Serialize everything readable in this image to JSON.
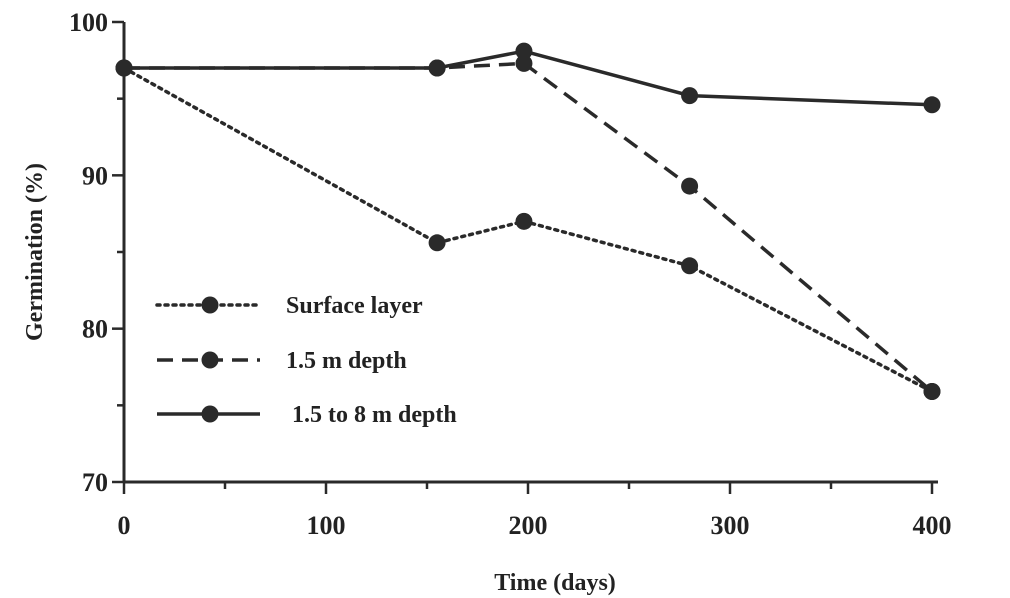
{
  "chart_data": {
    "type": "line",
    "title": "",
    "xlabel": "Time   (days)",
    "ylabel": "Germination   (%)",
    "xlim": [
      0,
      400
    ],
    "ylim": [
      70,
      100
    ],
    "xticks": [
      0,
      100,
      200,
      300,
      400
    ],
    "yticks": [
      70,
      80,
      90,
      100
    ],
    "grid": false,
    "legend_position": "left",
    "series": [
      {
        "name": "Surface layer",
        "style": "dotted",
        "points": [
          [
            0,
            97
          ],
          [
            155,
            85.6
          ],
          [
            198,
            87
          ],
          [
            280,
            84.1
          ],
          [
            400,
            75.9
          ]
        ]
      },
      {
        "name": "1.5 m depth",
        "style": "dashed",
        "points": [
          [
            0,
            97
          ],
          [
            155,
            97
          ],
          [
            198,
            97.3
          ],
          [
            280,
            89.3
          ],
          [
            400,
            75.9
          ]
        ]
      },
      {
        "name": "1.5 to 8 m depth",
        "style": "solid",
        "points": [
          [
            0,
            97
          ],
          [
            155,
            97
          ],
          [
            198,
            98.1
          ],
          [
            280,
            95.2
          ],
          [
            400,
            94.6
          ]
        ]
      }
    ],
    "colors": {
      "ink": "#2a2a2a"
    }
  }
}
